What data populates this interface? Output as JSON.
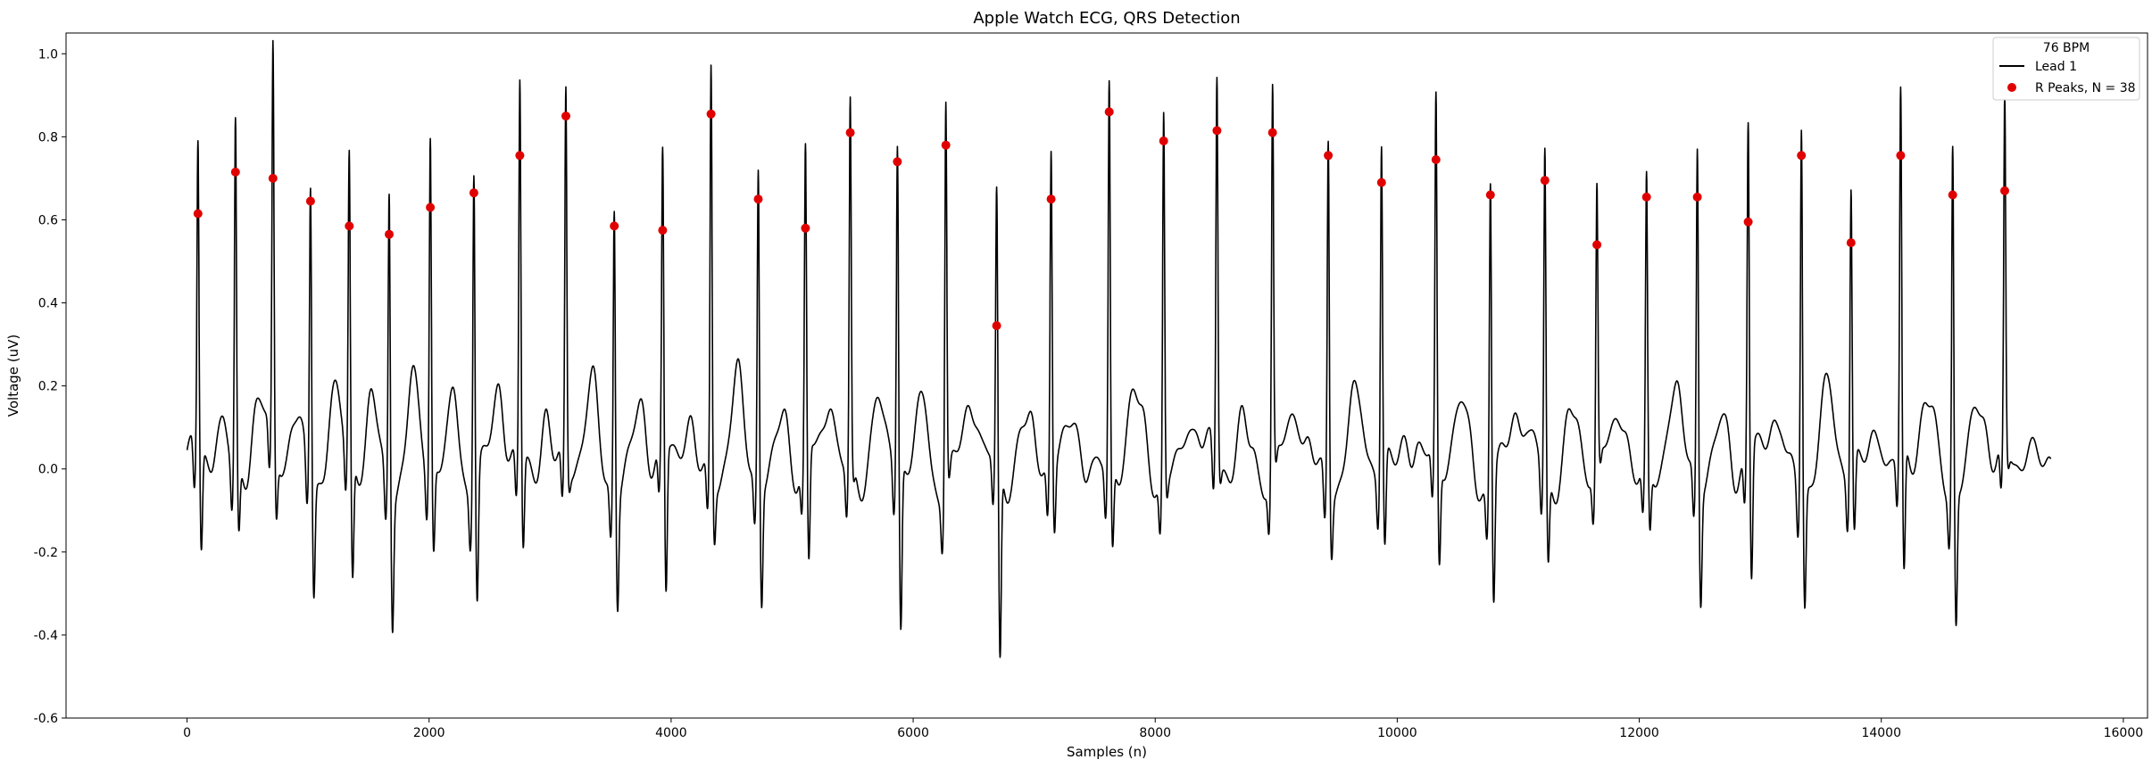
{
  "chart_data": {
    "type": "line",
    "title": "Apple Watch ECG, QRS Detection",
    "xlabel": "Samples (n)",
    "ylabel": "Voltage (uV)",
    "xlim": [
      -1000,
      16200
    ],
    "ylim": [
      -0.6,
      1.05
    ],
    "xticks": [
      0,
      2000,
      4000,
      6000,
      8000,
      10000,
      12000,
      14000,
      16000
    ],
    "yticks": [
      -0.6,
      -0.4,
      -0.2,
      0.0,
      0.2,
      0.4,
      0.6,
      0.8,
      1.0
    ],
    "grid": false,
    "legend": {
      "placement": "top-right",
      "title": "76 BPM",
      "entries": [
        "Lead 1",
        "R Peaks, N = 38"
      ]
    },
    "series": [
      {
        "name": "Lead 1",
        "color": "#000000",
        "style": "line",
        "n_samples": 15400,
        "baseline": 0.0,
        "r_peak_tops": [
          0.745,
          0.83,
          0.95,
          0.705,
          0.72,
          0.73,
          0.8,
          0.78,
          0.905,
          0.9,
          0.695,
          0.71,
          0.985,
          0.755,
          0.73,
          0.88,
          0.785,
          0.925,
          0.65,
          0.765,
          0.93,
          0.89,
          0.92,
          0.905,
          0.845,
          0.785,
          0.865,
          0.74,
          0.785,
          0.655,
          0.69,
          0.805,
          0.795,
          0.895,
          0.685,
          0.875,
          0.845,
          0.83
        ],
        "s_wave_troughs": [
          -0.3,
          -0.225,
          -0.21,
          -0.33,
          -0.355,
          -0.365,
          -0.265,
          -0.365,
          -0.28,
          -0.1,
          -0.325,
          -0.415,
          -0.195,
          -0.345,
          -0.345,
          -0.1,
          -0.455,
          -0.1,
          -0.53,
          -0.22,
          -0.255,
          -0.1,
          -0.1,
          -0.1,
          -0.2,
          -0.28,
          -0.305,
          -0.365,
          -0.265,
          -0.1,
          -0.21,
          -0.335,
          -0.38,
          -0.335,
          -0.24,
          -0.365,
          -0.38,
          -0.1
        ]
      },
      {
        "name": "R Peaks, N = 38",
        "color": "#e00000",
        "style": "scatter",
        "x": [
          90,
          400,
          710,
          1020,
          1340,
          1670,
          2010,
          2370,
          2750,
          3130,
          3530,
          3930,
          4330,
          4720,
          5110,
          5480,
          5870,
          6270,
          6690,
          7140,
          7620,
          8070,
          8510,
          8970,
          9430,
          9870,
          10320,
          10770,
          11220,
          11650,
          12060,
          12480,
          12900,
          13340,
          13750,
          14160,
          14590,
          15020
        ],
        "y": [
          0.615,
          0.715,
          0.7,
          0.645,
          0.585,
          0.565,
          0.63,
          0.665,
          0.755,
          0.85,
          0.585,
          0.575,
          0.855,
          0.65,
          0.58,
          0.81,
          0.74,
          0.78,
          0.345,
          0.65,
          0.86,
          0.79,
          0.815,
          0.81,
          0.755,
          0.69,
          0.745,
          0.66,
          0.695,
          0.54,
          0.655,
          0.655,
          0.595,
          0.755,
          0.545,
          0.755,
          0.66,
          0.67
        ]
      }
    ]
  }
}
